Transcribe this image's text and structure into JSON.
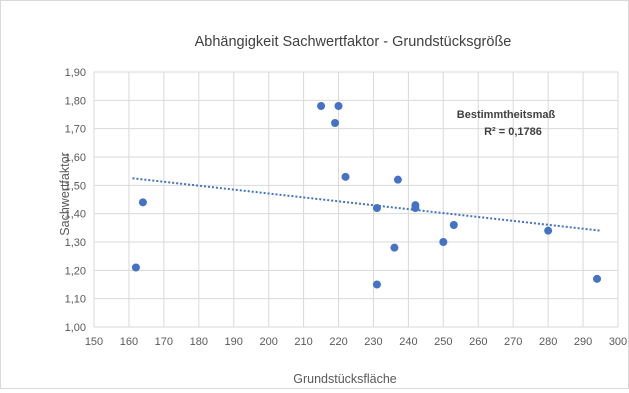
{
  "chart_data": {
    "type": "scatter",
    "title": "Abhängigkeit Sachwertfaktor - Grundstücksgröße",
    "xlabel": "Grundstücksfläche",
    "ylabel": "Sachwertfaktor",
    "xlim": [
      150,
      300
    ],
    "ylim": [
      1.0,
      1.9
    ],
    "xticks": [
      150,
      160,
      170,
      180,
      190,
      200,
      210,
      220,
      230,
      240,
      250,
      260,
      270,
      280,
      290,
      300
    ],
    "yticks": [
      1.0,
      1.1,
      1.2,
      1.3,
      1.4,
      1.5,
      1.6,
      1.7,
      1.8,
      1.9
    ],
    "xtick_labels": [
      "150",
      "160",
      "170",
      "180",
      "190",
      "200",
      "210",
      "220",
      "230",
      "240",
      "250",
      "260",
      "270",
      "280",
      "290",
      "300"
    ],
    "ytick_labels": [
      "1,00",
      "1,10",
      "1,20",
      "1,30",
      "1,40",
      "1,50",
      "1,60",
      "1,70",
      "1,80",
      "1,90"
    ],
    "grid": true,
    "points": [
      {
        "x": 162,
        "y": 1.21
      },
      {
        "x": 164,
        "y": 1.44
      },
      {
        "x": 215,
        "y": 1.78
      },
      {
        "x": 219,
        "y": 1.72
      },
      {
        "x": 220,
        "y": 1.78
      },
      {
        "x": 222,
        "y": 1.53
      },
      {
        "x": 231,
        "y": 1.42
      },
      {
        "x": 231,
        "y": 1.15
      },
      {
        "x": 236,
        "y": 1.28
      },
      {
        "x": 237,
        "y": 1.52
      },
      {
        "x": 242,
        "y": 1.42
      },
      {
        "x": 242,
        "y": 1.43
      },
      {
        "x": 250,
        "y": 1.3
      },
      {
        "x": 253,
        "y": 1.36
      },
      {
        "x": 280,
        "y": 1.34
      },
      {
        "x": 294,
        "y": 1.17
      }
    ],
    "trendline": {
      "x": [
        161,
        295
      ],
      "y": [
        1.525,
        1.34
      ]
    },
    "annotation": {
      "line1": "Bestimmtheitsmaß",
      "line2": "R² = 0,1786"
    },
    "colors": {
      "marker": "#4472c4",
      "trendline": "#4472c4",
      "grid": "#d9d9d9",
      "text": "#595959"
    }
  }
}
